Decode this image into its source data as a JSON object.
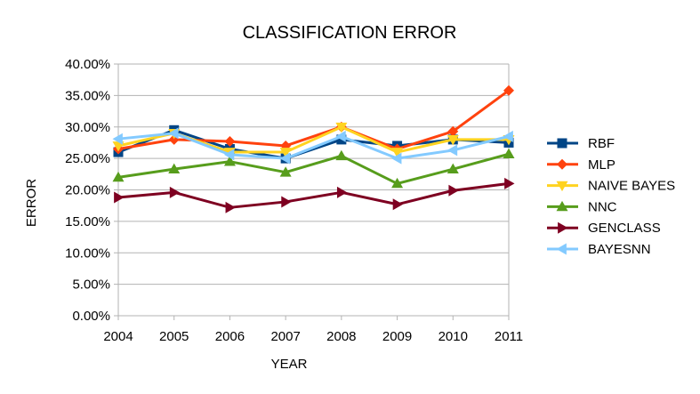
{
  "chart_data": {
    "type": "line",
    "title": "CLASSIFICATION ERROR",
    "xlabel": "YEAR",
    "ylabel": "ERROR",
    "ylim": [
      0,
      0.4
    ],
    "y_tick_values": [
      0.0,
      0.05,
      0.1,
      0.15,
      0.2,
      0.25,
      0.3,
      0.35,
      0.4
    ],
    "y_tick_labels": [
      "0.00%",
      "5.00%",
      "10.00%",
      "15.00%",
      "20.00%",
      "25.00%",
      "30.00%",
      "35.00%",
      "40.00%"
    ],
    "categories": [
      "2004",
      "2005",
      "2006",
      "2007",
      "2008",
      "2009",
      "2010",
      "2011"
    ],
    "grid": true,
    "legend_position": "right",
    "series": [
      {
        "name": "RBF",
        "color": "#004586",
        "marker": "square",
        "values": [
          0.26,
          0.295,
          0.265,
          0.25,
          0.28,
          0.27,
          0.28,
          0.275
        ]
      },
      {
        "name": "MLP",
        "color": "#ff420e",
        "marker": "diamond",
        "values": [
          0.265,
          0.28,
          0.277,
          0.27,
          0.3,
          0.265,
          0.293,
          0.358
        ]
      },
      {
        "name": "NAIVE BAYES",
        "color": "#ffd320",
        "marker": "triangle-down",
        "values": [
          0.27,
          0.29,
          0.26,
          0.26,
          0.3,
          0.26,
          0.28,
          0.28
        ]
      },
      {
        "name": "NNC",
        "color": "#579d1c",
        "marker": "triangle-up",
        "values": [
          0.22,
          0.233,
          0.245,
          0.228,
          0.254,
          0.21,
          0.233,
          0.257
        ]
      },
      {
        "name": "GENCLASS",
        "color": "#7e0021",
        "marker": "triangle-right",
        "values": [
          0.188,
          0.196,
          0.172,
          0.181,
          0.196,
          0.177,
          0.199,
          0.21
        ]
      },
      {
        "name": "BAYESNN",
        "color": "#83caff",
        "marker": "triangle-left",
        "values": [
          0.281,
          0.29,
          0.256,
          0.25,
          0.285,
          0.25,
          0.263,
          0.285
        ]
      }
    ]
  }
}
